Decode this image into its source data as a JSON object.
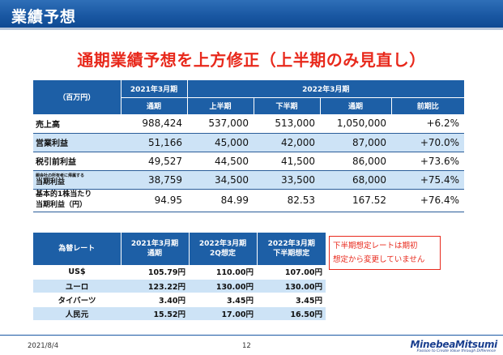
{
  "header": {
    "title": "業績予想"
  },
  "headline": "通期業績予想を上方修正（上半期のみ見直し）",
  "forecast": {
    "unit_label": "（百万円）",
    "fy21_label": "2021年3月期",
    "fy22_label": "2022年3月期",
    "sub_headers": [
      "通期",
      "上半期",
      "下半期",
      "通期",
      "前期比"
    ],
    "rows": [
      {
        "label": "売上高",
        "values": [
          "988,424",
          "537,000",
          "513,000",
          "1,050,000",
          "+6.2%"
        ]
      },
      {
        "label": "営業利益",
        "values": [
          "51,166",
          "45,000",
          "42,000",
          "87,000",
          "+70.0%"
        ]
      },
      {
        "label": "税引前利益",
        "values": [
          "49,527",
          "44,500",
          "41,500",
          "86,000",
          "+73.6%"
        ]
      },
      {
        "label_small": "親会社の所有者に帰属する",
        "label": "当期利益",
        "values": [
          "38,759",
          "34,500",
          "33,500",
          "68,000",
          "+75.4%"
        ]
      },
      {
        "label_line1": "基本的1株当たり",
        "label_line2": "当期利益（円）",
        "values": [
          "94.95",
          "84.99",
          "82.53",
          "167.52",
          "+76.4%"
        ]
      }
    ]
  },
  "fx": {
    "headers": [
      "為替レート",
      "2021年3月期",
      "通期",
      "2022年3月期",
      "2Q想定",
      "2022年3月期",
      "下半期想定"
    ],
    "rows": [
      {
        "label": "US$",
        "values": [
          "105.79円",
          "110.00円",
          "107.00円"
        ]
      },
      {
        "label": "ユーロ",
        "values": [
          "123.22円",
          "130.00円",
          "130.00円"
        ]
      },
      {
        "label": "タイバーツ",
        "values": [
          "3.40円",
          "3.45円",
          "3.45円"
        ]
      },
      {
        "label": "人民元",
        "values": [
          "15.52円",
          "17.00円",
          "16.50円"
        ]
      }
    ]
  },
  "note": {
    "line1": "下半期想定レートは期初",
    "line2": "想定から変更していません"
  },
  "footer": {
    "date": "2021/8/4",
    "page": "12",
    "logo": "MinebeaMitsumi",
    "tagline": "Passion to Create Value through Difference"
  }
}
